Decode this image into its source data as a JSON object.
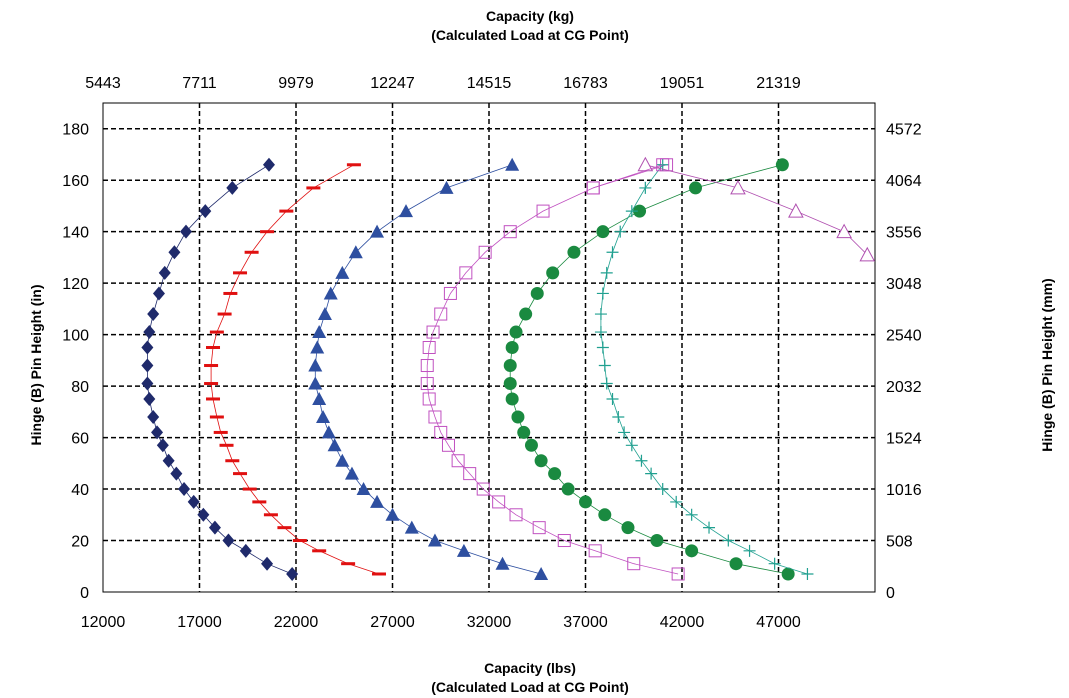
{
  "chart_data": {
    "type": "scatter",
    "title_top_line1": "Capacity (kg)",
    "title_top_line2": "(Calculated Load at CG Point)",
    "xlabel_line1": "Capacity (lbs)",
    "xlabel_line2": "(Calculated Load at CG Point)",
    "ylabel_left": "Hinge (B) Pin Height (in)",
    "ylabel_right": "Hinge (B) Pin Height (mm)",
    "xlim": [
      12000,
      52000
    ],
    "ylim": [
      0,
      190
    ],
    "x_ticks": [
      12000,
      17000,
      22000,
      27000,
      32000,
      37000,
      42000,
      47000
    ],
    "y_ticks": [
      0,
      20,
      40,
      60,
      80,
      100,
      120,
      140,
      160,
      180
    ],
    "top_ticks": [
      "5443",
      "7711",
      "9979",
      "12247",
      "14515",
      "16783",
      "19051",
      "21319"
    ],
    "right_ticks": [
      "0",
      "508",
      "1016",
      "1524",
      "2032",
      "2540",
      "3048",
      "3556",
      "4064",
      "4572"
    ],
    "grid": true,
    "series": [
      {
        "marker": "diamond",
        "color": "#1f2a6b",
        "points": [
          [
            20600,
            166
          ],
          [
            18700,
            157
          ],
          [
            17300,
            148
          ],
          [
            16300,
            140
          ],
          [
            15700,
            132
          ],
          [
            15200,
            124
          ],
          [
            14900,
            116
          ],
          [
            14600,
            108
          ],
          [
            14400,
            101
          ],
          [
            14300,
            95
          ],
          [
            14300,
            88
          ],
          [
            14300,
            81
          ],
          [
            14400,
            75
          ],
          [
            14600,
            68
          ],
          [
            14800,
            62
          ],
          [
            15100,
            57
          ],
          [
            15400,
            51
          ],
          [
            15800,
            46
          ],
          [
            16200,
            40
          ],
          [
            16700,
            35
          ],
          [
            17200,
            30
          ],
          [
            17800,
            25
          ],
          [
            18500,
            20
          ],
          [
            19400,
            16
          ],
          [
            20500,
            11
          ],
          [
            21800,
            7
          ]
        ]
      },
      {
        "marker": "dash",
        "color": "#e01010",
        "points": [
          [
            25000,
            166
          ],
          [
            22900,
            157
          ],
          [
            21500,
            148
          ],
          [
            20500,
            140
          ],
          [
            19700,
            132
          ],
          [
            19100,
            124
          ],
          [
            18600,
            116
          ],
          [
            18300,
            108
          ],
          [
            17900,
            101
          ],
          [
            17700,
            95
          ],
          [
            17600,
            88
          ],
          [
            17600,
            81
          ],
          [
            17700,
            75
          ],
          [
            17900,
            68
          ],
          [
            18100,
            62
          ],
          [
            18400,
            57
          ],
          [
            18700,
            51
          ],
          [
            19100,
            46
          ],
          [
            19600,
            40
          ],
          [
            20100,
            35
          ],
          [
            20700,
            30
          ],
          [
            21400,
            25
          ],
          [
            22200,
            20
          ],
          [
            23200,
            16
          ],
          [
            24700,
            11
          ],
          [
            26300,
            7
          ]
        ]
      },
      {
        "marker": "triangle",
        "color": "#2e4fa0",
        "points": [
          [
            33200,
            166
          ],
          [
            29800,
            157
          ],
          [
            27700,
            148
          ],
          [
            26200,
            140
          ],
          [
            25100,
            132
          ],
          [
            24400,
            124
          ],
          [
            23800,
            116
          ],
          [
            23500,
            108
          ],
          [
            23200,
            101
          ],
          [
            23100,
            95
          ],
          [
            23000,
            88
          ],
          [
            23000,
            81
          ],
          [
            23200,
            75
          ],
          [
            23400,
            68
          ],
          [
            23700,
            62
          ],
          [
            24000,
            57
          ],
          [
            24400,
            51
          ],
          [
            24900,
            46
          ],
          [
            25500,
            40
          ],
          [
            26200,
            35
          ],
          [
            27000,
            30
          ],
          [
            28000,
            25
          ],
          [
            29200,
            20
          ],
          [
            30700,
            16
          ],
          [
            32700,
            11
          ],
          [
            34700,
            7
          ]
        ]
      },
      {
        "marker": "square",
        "color": "#c050c0",
        "points": [
          [
            41200,
            166
          ],
          [
            37400,
            157
          ],
          [
            34800,
            148
          ],
          [
            33100,
            140
          ],
          [
            31800,
            132
          ],
          [
            30800,
            124
          ],
          [
            30000,
            116
          ],
          [
            29500,
            108
          ],
          [
            29100,
            101
          ],
          [
            28900,
            95
          ],
          [
            28800,
            88
          ],
          [
            28800,
            81
          ],
          [
            28900,
            75
          ],
          [
            29200,
            68
          ],
          [
            29500,
            62
          ],
          [
            29900,
            57
          ],
          [
            30400,
            51
          ],
          [
            31000,
            46
          ],
          [
            31700,
            40
          ],
          [
            32500,
            35
          ],
          [
            33400,
            30
          ],
          [
            34600,
            25
          ],
          [
            35900,
            20
          ],
          [
            37500,
            16
          ],
          [
            39500,
            11
          ],
          [
            41800,
            7
          ]
        ]
      },
      {
        "marker": "circle",
        "color": "#1a8a40",
        "points": [
          [
            47200,
            166
          ],
          [
            42700,
            157
          ],
          [
            39800,
            148
          ],
          [
            37900,
            140
          ],
          [
            36400,
            132
          ],
          [
            35300,
            124
          ],
          [
            34500,
            116
          ],
          [
            33900,
            108
          ],
          [
            33400,
            101
          ],
          [
            33200,
            95
          ],
          [
            33100,
            88
          ],
          [
            33100,
            81
          ],
          [
            33200,
            75
          ],
          [
            33500,
            68
          ],
          [
            33800,
            62
          ],
          [
            34200,
            57
          ],
          [
            34700,
            51
          ],
          [
            35400,
            46
          ],
          [
            36100,
            40
          ],
          [
            37000,
            35
          ],
          [
            38000,
            30
          ],
          [
            39200,
            25
          ],
          [
            40700,
            20
          ],
          [
            42500,
            16
          ],
          [
            44800,
            11
          ],
          [
            47500,
            7
          ]
        ]
      },
      {
        "marker": "plus",
        "color": "#20a090",
        "points": [
          [
            41000,
            166
          ],
          [
            40100,
            157
          ],
          [
            39400,
            148
          ],
          [
            38800,
            140
          ],
          [
            38400,
            132
          ],
          [
            38100,
            124
          ],
          [
            37900,
            116
          ],
          [
            37800,
            108
          ],
          [
            37800,
            101
          ],
          [
            37900,
            95
          ],
          [
            38000,
            88
          ],
          [
            38100,
            81
          ],
          [
            38400,
            75
          ],
          [
            38700,
            68
          ],
          [
            39000,
            62
          ],
          [
            39400,
            57
          ],
          [
            39900,
            51
          ],
          [
            40400,
            46
          ],
          [
            41000,
            40
          ],
          [
            41700,
            35
          ],
          [
            42500,
            30
          ],
          [
            43400,
            25
          ],
          [
            44400,
            20
          ],
          [
            45500,
            16
          ],
          [
            46800,
            11
          ],
          [
            48500,
            7
          ]
        ]
      },
      {
        "marker": "triangle-open",
        "color": "#b050b0",
        "points": [
          [
            51600,
            131
          ],
          [
            50400,
            140
          ],
          [
            47900,
            148
          ],
          [
            44900,
            157
          ],
          [
            40100,
            166
          ]
        ]
      },
      {
        "marker": "square-open",
        "color": "#c050c0",
        "points": [
          [
            41000,
            166
          ],
          [
            37400,
            157
          ]
        ]
      }
    ]
  }
}
